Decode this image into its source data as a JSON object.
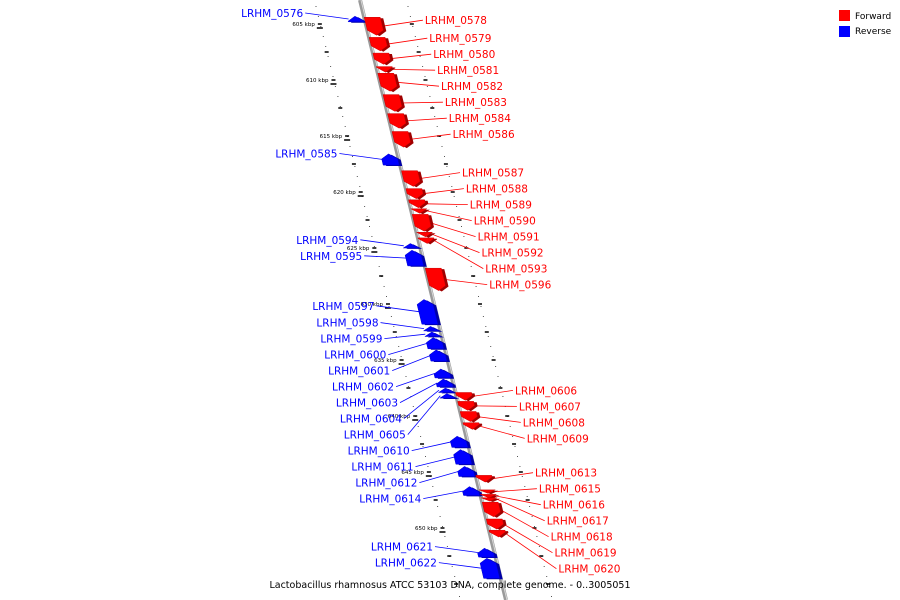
{
  "legend": [
    {
      "label": "Forward",
      "color": "#ff0000"
    },
    {
      "label": "Reverse",
      "color": "#0000ff"
    }
  ],
  "caption": "Lactobacillus rhamnosus ATCC 53103 DNA, complete genome. - 0..3005051",
  "colors": {
    "forward": "#ff0000",
    "reverse": "#0000ff",
    "axis": "#808080"
  },
  "ruler": [
    {
      "label": "605 kbp",
      "pos": 605
    },
    {
      "label": "610 kbp",
      "pos": 610
    },
    {
      "label": "615 kbp",
      "pos": 615
    },
    {
      "label": "620 kbp",
      "pos": 620
    },
    {
      "label": "625 kbp",
      "pos": 625
    },
    {
      "label": "630 kbp",
      "pos": 630
    },
    {
      "label": "635 kbp",
      "pos": 635
    },
    {
      "label": "640 kbp",
      "pos": 640
    },
    {
      "label": "645 kbp",
      "pos": 645
    },
    {
      "label": "650 kbp",
      "pos": 650
    }
  ],
  "genes": [
    {
      "name": "LRHM_0576",
      "strand": "reverse",
      "start": 604.3,
      "end": 604.8
    },
    {
      "name": "LRHM_0578",
      "strand": "forward",
      "start": 604.4,
      "end": 606.0
    },
    {
      "name": "LRHM_0579",
      "strand": "forward",
      "start": 606.2,
      "end": 607.4
    },
    {
      "name": "LRHM_0580",
      "strand": "forward",
      "start": 607.6,
      "end": 608.6
    },
    {
      "name": "LRHM_0581",
      "strand": "forward",
      "start": 608.8,
      "end": 609.3
    },
    {
      "name": "LRHM_0582",
      "strand": "forward",
      "start": 609.4,
      "end": 611.0
    },
    {
      "name": "LRHM_0583",
      "strand": "forward",
      "start": 611.3,
      "end": 612.8
    },
    {
      "name": "LRHM_0584",
      "strand": "forward",
      "start": 613.0,
      "end": 614.3
    },
    {
      "name": "LRHM_0586",
      "strand": "forward",
      "start": 614.6,
      "end": 616.0
    },
    {
      "name": "LRHM_0585",
      "strand": "reverse",
      "start": 616.6,
      "end": 617.6
    },
    {
      "name": "LRHM_0587",
      "strand": "forward",
      "start": 618.1,
      "end": 619.5
    },
    {
      "name": "LRHM_0588",
      "strand": "forward",
      "start": 619.7,
      "end": 620.6
    },
    {
      "name": "LRHM_0589",
      "strand": "forward",
      "start": 620.7,
      "end": 621.4
    },
    {
      "name": "LRHM_0590",
      "strand": "forward",
      "start": 621.5,
      "end": 621.9
    },
    {
      "name": "LRHM_0591",
      "strand": "forward",
      "start": 622.0,
      "end": 623.5
    },
    {
      "name": "LRHM_0592",
      "strand": "forward",
      "start": 623.6,
      "end": 624.0
    },
    {
      "name": "LRHM_0593",
      "strand": "forward",
      "start": 624.1,
      "end": 624.6
    },
    {
      "name": "LRHM_0594",
      "strand": "reverse",
      "start": 624.6,
      "end": 625.0
    },
    {
      "name": "LRHM_0595",
      "strand": "reverse",
      "start": 625.2,
      "end": 626.6
    },
    {
      "name": "LRHM_0596",
      "strand": "forward",
      "start": 626.8,
      "end": 628.8
    },
    {
      "name": "LRHM_0597",
      "strand": "reverse",
      "start": 629.6,
      "end": 631.8
    },
    {
      "name": "LRHM_0598",
      "strand": "reverse",
      "start": 632.0,
      "end": 632.4
    },
    {
      "name": "LRHM_0599",
      "strand": "reverse",
      "start": 632.5,
      "end": 632.9
    },
    {
      "name": "LRHM_0600",
      "strand": "reverse",
      "start": 633.0,
      "end": 634.0
    },
    {
      "name": "LRHM_0601",
      "strand": "reverse",
      "start": 634.1,
      "end": 635.1
    },
    {
      "name": "LRHM_0602",
      "strand": "reverse",
      "start": 635.8,
      "end": 636.6
    },
    {
      "name": "LRHM_0603",
      "strand": "reverse",
      "start": 636.7,
      "end": 637.4
    },
    {
      "name": "LRHM_0604",
      "strand": "reverse",
      "start": 637.5,
      "end": 637.9
    },
    {
      "name": "LRHM_0605",
      "strand": "reverse",
      "start": 638.0,
      "end": 638.4
    },
    {
      "name": "LRHM_0606",
      "strand": "forward",
      "start": 637.9,
      "end": 638.6
    },
    {
      "name": "LRHM_0607",
      "strand": "forward",
      "start": 638.7,
      "end": 639.5
    },
    {
      "name": "LRHM_0608",
      "strand": "forward",
      "start": 639.6,
      "end": 640.5
    },
    {
      "name": "LRHM_0609",
      "strand": "forward",
      "start": 640.6,
      "end": 641.2
    },
    {
      "name": "LRHM_0610",
      "strand": "reverse",
      "start": 641.8,
      "end": 642.8
    },
    {
      "name": "LRHM_0611",
      "strand": "reverse",
      "start": 643.0,
      "end": 644.3
    },
    {
      "name": "LRHM_0612",
      "strand": "reverse",
      "start": 644.5,
      "end": 645.4
    },
    {
      "name": "LRHM_0613",
      "strand": "forward",
      "start": 645.3,
      "end": 645.9
    },
    {
      "name": "LRHM_0614",
      "strand": "reverse",
      "start": 646.3,
      "end": 647.1
    },
    {
      "name": "LRHM_0615",
      "strand": "forward",
      "start": 646.6,
      "end": 646.9
    },
    {
      "name": "LRHM_0616",
      "strand": "forward",
      "start": 647.0,
      "end": 647.3
    },
    {
      "name": "LRHM_0617",
      "strand": "forward",
      "start": 647.3,
      "end": 647.6
    },
    {
      "name": "LRHM_0618",
      "strand": "forward",
      "start": 647.7,
      "end": 649.0
    },
    {
      "name": "LRHM_0619",
      "strand": "forward",
      "start": 649.2,
      "end": 650.1
    },
    {
      "name": "LRHM_0620",
      "strand": "forward",
      "start": 650.2,
      "end": 650.8
    },
    {
      "name": "LRHM_0621",
      "strand": "reverse",
      "start": 651.8,
      "end": 652.6
    },
    {
      "name": "LRHM_0622",
      "strand": "reverse",
      "start": 652.7,
      "end": 654.5
    }
  ]
}
